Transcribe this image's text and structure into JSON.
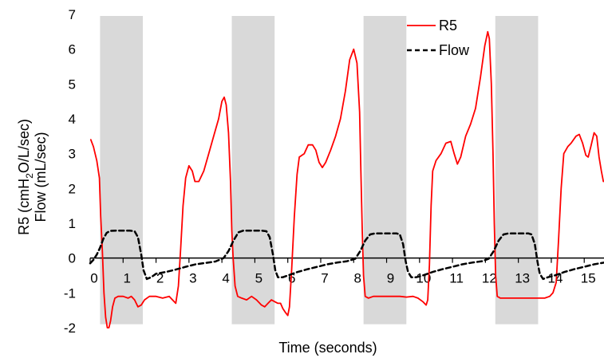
{
  "chart_data": {
    "type": "line",
    "title": "",
    "xlabel": "Time (seconds)",
    "ylabel_line1": "R5 (cmH",
    "ylabel_sub": "2",
    "ylabel_line1_rest": "O/L/sec)",
    "ylabel_line2": "Flow (mL/sec)",
    "xlim": [
      0,
      15.6
    ],
    "ylim": [
      -2,
      7
    ],
    "x_ticks": [
      0,
      1,
      2,
      3,
      4,
      5,
      6,
      7,
      8,
      9,
      10,
      11,
      12,
      13,
      14,
      15
    ],
    "y_ticks": [
      -2,
      -1,
      0,
      1,
      2,
      3,
      4,
      5,
      6,
      7
    ],
    "grid": false,
    "legend": "top-right",
    "shaded_regions": [
      [
        0.3,
        1.6
      ],
      [
        4.3,
        5.6
      ],
      [
        8.3,
        9.6
      ],
      [
        12.3,
        13.6
      ]
    ],
    "series": [
      {
        "name": "R5",
        "color": "#ff0000",
        "style": "solid",
        "points": [
          [
            0.02,
            3.4
          ],
          [
            0.1,
            3.2
          ],
          [
            0.2,
            2.8
          ],
          [
            0.28,
            2.3
          ],
          [
            0.32,
            1.2
          ],
          [
            0.37,
            0.2
          ],
          [
            0.42,
            -1.0
          ],
          [
            0.47,
            -1.7
          ],
          [
            0.52,
            -2.0
          ],
          [
            0.57,
            -2.0
          ],
          [
            0.62,
            -1.8
          ],
          [
            0.68,
            -1.4
          ],
          [
            0.75,
            -1.15
          ],
          [
            0.85,
            -1.1
          ],
          [
            1.0,
            -1.1
          ],
          [
            1.15,
            -1.15
          ],
          [
            1.25,
            -1.1
          ],
          [
            1.35,
            -1.2
          ],
          [
            1.45,
            -1.4
          ],
          [
            1.55,
            -1.35
          ],
          [
            1.65,
            -1.2
          ],
          [
            1.8,
            -1.1
          ],
          [
            2.0,
            -1.1
          ],
          [
            2.2,
            -1.15
          ],
          [
            2.4,
            -1.1
          ],
          [
            2.5,
            -1.2
          ],
          [
            2.6,
            -1.3
          ],
          [
            2.68,
            -0.8
          ],
          [
            2.75,
            0.3
          ],
          [
            2.82,
            1.5
          ],
          [
            2.9,
            2.3
          ],
          [
            3.0,
            2.65
          ],
          [
            3.1,
            2.5
          ],
          [
            3.18,
            2.2
          ],
          [
            3.3,
            2.2
          ],
          [
            3.45,
            2.5
          ],
          [
            3.6,
            3.0
          ],
          [
            3.75,
            3.5
          ],
          [
            3.9,
            4.0
          ],
          [
            4.0,
            4.5
          ],
          [
            4.07,
            4.62
          ],
          [
            4.13,
            4.4
          ],
          [
            4.2,
            3.6
          ],
          [
            4.26,
            2.2
          ],
          [
            4.3,
            0.8
          ],
          [
            4.34,
            0.0
          ],
          [
            4.4,
            -0.8
          ],
          [
            4.48,
            -1.1
          ],
          [
            4.6,
            -1.15
          ],
          [
            4.75,
            -1.2
          ],
          [
            4.9,
            -1.1
          ],
          [
            5.05,
            -1.2
          ],
          [
            5.2,
            -1.35
          ],
          [
            5.3,
            -1.4
          ],
          [
            5.4,
            -1.3
          ],
          [
            5.5,
            -1.2
          ],
          [
            5.6,
            -1.25
          ],
          [
            5.7,
            -1.3
          ],
          [
            5.78,
            -1.3
          ],
          [
            5.85,
            -1.45
          ],
          [
            5.92,
            -1.55
          ],
          [
            6.0,
            -1.65
          ],
          [
            6.05,
            -1.4
          ],
          [
            6.12,
            -0.3
          ],
          [
            6.2,
            1.2
          ],
          [
            6.28,
            2.4
          ],
          [
            6.35,
            2.9
          ],
          [
            6.5,
            3.0
          ],
          [
            6.62,
            3.25
          ],
          [
            6.75,
            3.25
          ],
          [
            6.85,
            3.1
          ],
          [
            6.95,
            2.75
          ],
          [
            7.05,
            2.6
          ],
          [
            7.15,
            2.75
          ],
          [
            7.3,
            3.1
          ],
          [
            7.45,
            3.5
          ],
          [
            7.6,
            4.0
          ],
          [
            7.75,
            4.8
          ],
          [
            7.88,
            5.7
          ],
          [
            8.0,
            6.0
          ],
          [
            8.1,
            5.6
          ],
          [
            8.18,
            4.2
          ],
          [
            8.22,
            2.5
          ],
          [
            8.26,
            0.8
          ],
          [
            8.3,
            -0.5
          ],
          [
            8.35,
            -1.1
          ],
          [
            8.45,
            -1.15
          ],
          [
            8.6,
            -1.1
          ],
          [
            8.8,
            -1.1
          ],
          [
            9.0,
            -1.1
          ],
          [
            9.2,
            -1.1
          ],
          [
            9.4,
            -1.1
          ],
          [
            9.6,
            -1.12
          ],
          [
            9.8,
            -1.1
          ],
          [
            9.95,
            -1.15
          ],
          [
            10.1,
            -1.25
          ],
          [
            10.2,
            -1.35
          ],
          [
            10.25,
            -1.2
          ],
          [
            10.3,
            -0.2
          ],
          [
            10.35,
            1.5
          ],
          [
            10.4,
            2.5
          ],
          [
            10.5,
            2.8
          ],
          [
            10.65,
            3.0
          ],
          [
            10.8,
            3.3
          ],
          [
            10.95,
            3.35
          ],
          [
            11.05,
            3.0
          ],
          [
            11.15,
            2.7
          ],
          [
            11.25,
            2.9
          ],
          [
            11.4,
            3.5
          ],
          [
            11.55,
            3.85
          ],
          [
            11.7,
            4.3
          ],
          [
            11.85,
            5.2
          ],
          [
            11.98,
            6.1
          ],
          [
            12.07,
            6.5
          ],
          [
            12.12,
            6.3
          ],
          [
            12.18,
            5.0
          ],
          [
            12.23,
            3.0
          ],
          [
            12.27,
            1.0
          ],
          [
            12.31,
            -0.5
          ],
          [
            12.36,
            -1.1
          ],
          [
            12.45,
            -1.15
          ],
          [
            12.6,
            -1.15
          ],
          [
            12.8,
            -1.15
          ],
          [
            13.0,
            -1.15
          ],
          [
            13.2,
            -1.15
          ],
          [
            13.4,
            -1.15
          ],
          [
            13.6,
            -1.15
          ],
          [
            13.8,
            -1.15
          ],
          [
            13.95,
            -1.1
          ],
          [
            14.05,
            -1.0
          ],
          [
            14.15,
            -0.7
          ],
          [
            14.22,
            0.5
          ],
          [
            14.3,
            2.0
          ],
          [
            14.38,
            3.0
          ],
          [
            14.5,
            3.2
          ],
          [
            14.6,
            3.3
          ],
          [
            14.75,
            3.5
          ],
          [
            14.85,
            3.55
          ],
          [
            14.95,
            3.3
          ],
          [
            15.05,
            2.95
          ],
          [
            15.12,
            2.9
          ],
          [
            15.2,
            3.2
          ],
          [
            15.3,
            3.6
          ],
          [
            15.38,
            3.5
          ],
          [
            15.45,
            2.9
          ],
          [
            15.52,
            2.5
          ],
          [
            15.58,
            2.2
          ]
        ]
      },
      {
        "name": "Flow",
        "color": "#000000",
        "style": "dashed",
        "points": [
          [
            0.0,
            -0.15
          ],
          [
            0.1,
            -0.05
          ],
          [
            0.2,
            0.1
          ],
          [
            0.3,
            0.3
          ],
          [
            0.4,
            0.55
          ],
          [
            0.5,
            0.72
          ],
          [
            0.6,
            0.78
          ],
          [
            0.8,
            0.79
          ],
          [
            1.0,
            0.79
          ],
          [
            1.2,
            0.79
          ],
          [
            1.35,
            0.77
          ],
          [
            1.45,
            0.6
          ],
          [
            1.55,
            0.1
          ],
          [
            1.62,
            -0.35
          ],
          [
            1.72,
            -0.6
          ],
          [
            1.85,
            -0.55
          ],
          [
            2.0,
            -0.45
          ],
          [
            2.3,
            -0.4
          ],
          [
            2.6,
            -0.33
          ],
          [
            2.9,
            -0.25
          ],
          [
            3.2,
            -0.18
          ],
          [
            3.5,
            -0.14
          ],
          [
            3.8,
            -0.1
          ],
          [
            4.05,
            0.0
          ],
          [
            4.2,
            0.2
          ],
          [
            4.35,
            0.5
          ],
          [
            4.5,
            0.74
          ],
          [
            4.65,
            0.79
          ],
          [
            4.9,
            0.79
          ],
          [
            5.2,
            0.79
          ],
          [
            5.35,
            0.77
          ],
          [
            5.45,
            0.6
          ],
          [
            5.55,
            0.1
          ],
          [
            5.62,
            -0.35
          ],
          [
            5.7,
            -0.55
          ],
          [
            5.85,
            -0.55
          ],
          [
            6.0,
            -0.5
          ],
          [
            6.3,
            -0.4
          ],
          [
            6.6,
            -0.32
          ],
          [
            6.9,
            -0.25
          ],
          [
            7.2,
            -0.18
          ],
          [
            7.5,
            -0.13
          ],
          [
            7.8,
            -0.09
          ],
          [
            8.05,
            -0.02
          ],
          [
            8.2,
            0.2
          ],
          [
            8.35,
            0.5
          ],
          [
            8.5,
            0.68
          ],
          [
            8.65,
            0.71
          ],
          [
            9.0,
            0.71
          ],
          [
            9.3,
            0.71
          ],
          [
            9.4,
            0.68
          ],
          [
            9.5,
            0.4
          ],
          [
            9.58,
            -0.1
          ],
          [
            9.65,
            -0.4
          ],
          [
            9.75,
            -0.55
          ],
          [
            9.9,
            -0.55
          ],
          [
            10.1,
            -0.5
          ],
          [
            10.4,
            -0.4
          ],
          [
            10.7,
            -0.32
          ],
          [
            11.0,
            -0.25
          ],
          [
            11.3,
            -0.18
          ],
          [
            11.6,
            -0.13
          ],
          [
            11.9,
            -0.09
          ],
          [
            12.1,
            -0.02
          ],
          [
            12.25,
            0.2
          ],
          [
            12.4,
            0.5
          ],
          [
            12.55,
            0.68
          ],
          [
            12.7,
            0.71
          ],
          [
            13.0,
            0.71
          ],
          [
            13.3,
            0.71
          ],
          [
            13.4,
            0.68
          ],
          [
            13.5,
            0.4
          ],
          [
            13.58,
            -0.1
          ],
          [
            13.65,
            -0.45
          ],
          [
            13.75,
            -0.6
          ],
          [
            13.9,
            -0.55
          ],
          [
            14.1,
            -0.5
          ],
          [
            14.4,
            -0.4
          ],
          [
            14.7,
            -0.32
          ],
          [
            15.0,
            -0.25
          ],
          [
            15.3,
            -0.18
          ],
          [
            15.6,
            -0.13
          ]
        ]
      }
    ]
  }
}
